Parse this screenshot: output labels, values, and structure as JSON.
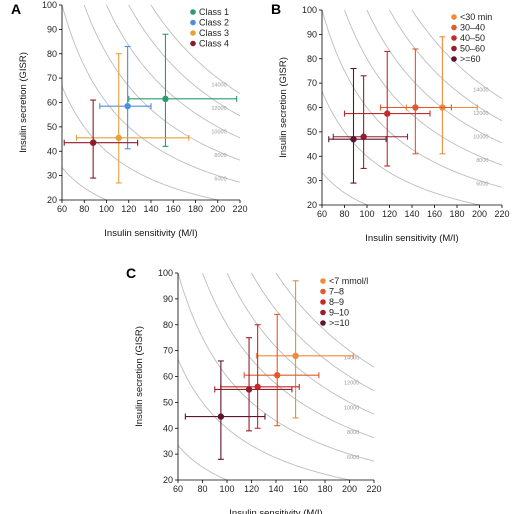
{
  "chart_data": [
    {
      "panel": "A",
      "type": "scatter",
      "xlabel": "Insulin sensitivity (M/I)",
      "ylabel": "Insulin secretion (GISR)",
      "xlim": [
        60,
        220
      ],
      "ylim": [
        20,
        100
      ],
      "xticks": [
        60,
        80,
        100,
        120,
        140,
        160,
        180,
        200,
        220
      ],
      "yticks": [
        20,
        30,
        40,
        50,
        60,
        70,
        80,
        90,
        100
      ],
      "grid": false,
      "legend_position": "top-right",
      "isolines": [
        {
          "value": 2000,
          "label": "2000"
        },
        {
          "value": 4000,
          "label": "4000"
        },
        {
          "value": 6000,
          "label": "6000"
        },
        {
          "value": 8000,
          "label": "8000"
        },
        {
          "value": 10000,
          "label": "10000"
        },
        {
          "value": 12000,
          "label": "12000"
        },
        {
          "value": 14000,
          "label": "14000"
        }
      ],
      "series": [
        {
          "name": "Class 1",
          "color": "#2e9a6c",
          "x": 153,
          "y": 61.5,
          "xerr": [
            120,
            217
          ],
          "yerr": [
            42,
            88
          ]
        },
        {
          "name": "Class 2",
          "color": "#4a90e2",
          "x": 119,
          "y": 58.5,
          "xerr": [
            94,
            140
          ],
          "yerr": [
            41,
            83
          ]
        },
        {
          "name": "Class 3",
          "color": "#e8a13a",
          "x": 111,
          "y": 45.5,
          "xerr": [
            73,
            174
          ],
          "yerr": [
            27,
            80
          ]
        },
        {
          "name": "Class 4",
          "color": "#8b1c2a",
          "x": 88,
          "y": 43.5,
          "xerr": [
            62,
            128
          ],
          "yerr": [
            29,
            61
          ]
        }
      ]
    },
    {
      "panel": "B",
      "type": "scatter",
      "xlabel": "Insulin sensitivity (M/I)",
      "ylabel": "Insulin secretion (GISR)",
      "xlim": [
        60,
        220
      ],
      "ylim": [
        20,
        100
      ],
      "xticks": [
        60,
        80,
        100,
        120,
        140,
        160,
        180,
        200,
        220
      ],
      "yticks": [
        20,
        30,
        40,
        50,
        60,
        70,
        80,
        90,
        100
      ],
      "grid": false,
      "legend_position": "top-right",
      "isolines": [
        {
          "value": 2000,
          "label": "2000"
        },
        {
          "value": 4000,
          "label": "4000"
        },
        {
          "value": 6000,
          "label": "6000"
        },
        {
          "value": 8000,
          "label": "8000"
        },
        {
          "value": 10000,
          "label": "10000"
        },
        {
          "value": 12000,
          "label": "12000"
        },
        {
          "value": 14000,
          "label": "14000"
        }
      ],
      "series": [
        {
          "name": "<30 min",
          "color": "#f08a3c",
          "x": 167,
          "y": 60,
          "xerr": [
            135,
            198
          ],
          "yerr": [
            41,
            89
          ]
        },
        {
          "name": "30–40",
          "color": "#e05a2b",
          "x": 143,
          "y": 60,
          "xerr": [
            112,
            175
          ],
          "yerr": [
            41,
            84
          ]
        },
        {
          "name": "40–50",
          "color": "#c42a2a",
          "x": 118,
          "y": 57.5,
          "xerr": [
            80,
            156
          ],
          "yerr": [
            36,
            83
          ]
        },
        {
          "name": "50–60",
          "color": "#951d2e",
          "x": 97,
          "y": 48,
          "xerr": [
            70,
            136
          ],
          "yerr": [
            35,
            73
          ]
        },
        {
          "name": ">=60",
          "color": "#5e1530",
          "x": 88,
          "y": 47,
          "xerr": [
            66,
            117
          ],
          "yerr": [
            29,
            76
          ]
        }
      ]
    },
    {
      "panel": "C",
      "type": "scatter",
      "xlabel": "Insulin sensitivity (M/I)",
      "ylabel": "Insulin secretion (GISR)",
      "xlim": [
        60,
        220
      ],
      "ylim": [
        20,
        100
      ],
      "xticks": [
        60,
        80,
        100,
        120,
        140,
        160,
        180,
        200,
        220
      ],
      "yticks": [
        20,
        30,
        40,
        50,
        60,
        70,
        80,
        90,
        100
      ],
      "grid": false,
      "legend_position": "top-right",
      "isolines": [
        {
          "value": 2000,
          "label": "2000"
        },
        {
          "value": 4000,
          "label": "4000"
        },
        {
          "value": 6000,
          "label": "6000"
        },
        {
          "value": 8000,
          "label": "8000"
        },
        {
          "value": 10000,
          "label": "10000"
        },
        {
          "value": 12000,
          "label": "12000"
        },
        {
          "value": 14000,
          "label": "14000"
        }
      ],
      "series": [
        {
          "name": "<7 mmol/l",
          "color": "#f08a3c",
          "x": 156,
          "y": 68,
          "xerr": [
            124,
            203
          ],
          "yerr": [
            44,
            97
          ]
        },
        {
          "name": "7–8",
          "color": "#e05a2b",
          "x": 141,
          "y": 60.5,
          "xerr": [
            114,
            175
          ],
          "yerr": [
            41,
            84
          ]
        },
        {
          "name": "8–9",
          "color": "#c42a2a",
          "x": 125,
          "y": 56,
          "xerr": [
            95,
            159
          ],
          "yerr": [
            40,
            80
          ]
        },
        {
          "name": "9–10",
          "color": "#951d2e",
          "x": 118,
          "y": 55,
          "xerr": [
            90,
            153
          ],
          "yerr": [
            39,
            75
          ]
        },
        {
          "name": ">=10",
          "color": "#5e1530",
          "x": 95,
          "y": 44.5,
          "xerr": [
            66,
            131
          ],
          "yerr": [
            28,
            66
          ]
        }
      ]
    }
  ]
}
